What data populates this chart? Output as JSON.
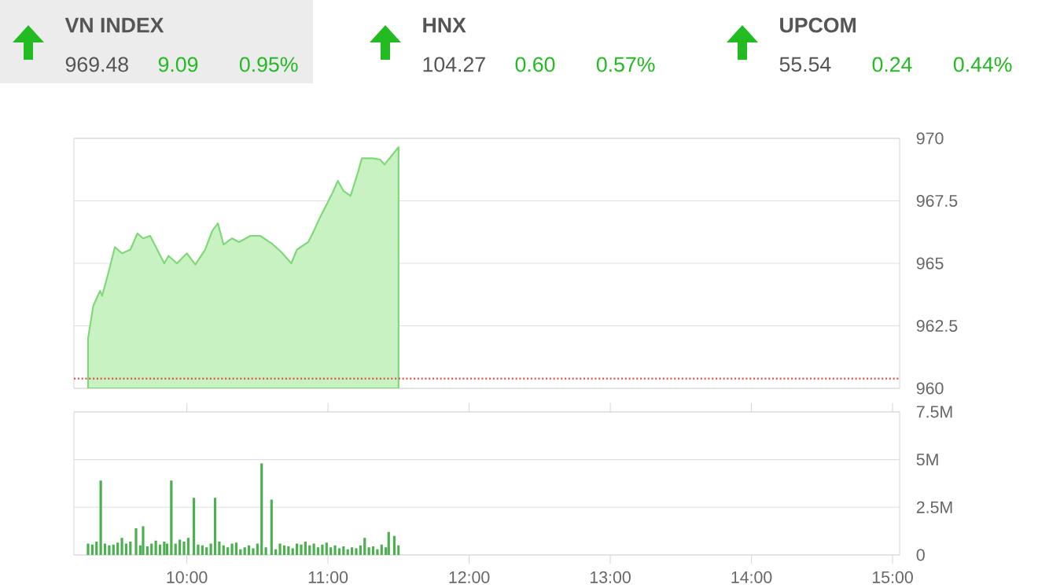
{
  "chart_data": [
    {
      "type": "other",
      "annotations": [
        "VN INDEX",
        "969.48",
        "9.09",
        "0.95%",
        "HNX",
        "104.27",
        "0.60",
        "0.57%",
        "UPCOM",
        "55.54",
        "0.24",
        "0.44%"
      ]
    },
    {
      "type": "area",
      "tick_labels": "y",
      "grid": "y",
      "xlim": [
        9.2,
        15.05
      ],
      "ylim": [
        960,
        970
      ],
      "yticks": [
        960,
        962.5,
        965,
        967.5,
        970
      ],
      "ref_lines": [
        {
          "axis": "y",
          "value": 960.39,
          "color": "#d9534f",
          "line_style": "dotted"
        }
      ],
      "series": [
        {
          "color": "#7fd877",
          "x": [
            9.3,
            9.337,
            9.385,
            9.4,
            9.448,
            9.49,
            9.54,
            9.6,
            9.65,
            9.69,
            9.74,
            9.84,
            9.87,
            9.93,
            10.0,
            10.06,
            10.13,
            10.18,
            10.22,
            10.26,
            10.32,
            10.37,
            10.45,
            10.52,
            10.6,
            10.67,
            10.74,
            10.78,
            10.86,
            10.9,
            10.94,
            10.99,
            11.03,
            11.07,
            11.11,
            11.16,
            11.21,
            11.24,
            11.32,
            11.37,
            11.4,
            11.45,
            11.5
          ],
          "values": [
            962.0,
            963.3,
            963.9,
            963.7,
            964.7,
            965.65,
            965.4,
            965.55,
            966.2,
            966.0,
            966.1,
            965.0,
            965.3,
            965.0,
            965.4,
            964.95,
            965.55,
            966.3,
            966.6,
            965.75,
            966.0,
            965.85,
            966.1,
            966.1,
            965.8,
            965.45,
            965.0,
            965.55,
            965.85,
            966.3,
            966.8,
            967.35,
            967.8,
            968.3,
            967.9,
            967.7,
            968.6,
            969.2,
            969.2,
            969.15,
            968.95,
            969.3,
            969.65
          ]
        }
      ]
    },
    {
      "type": "bar",
      "grid": "y",
      "xlim": [
        9.2,
        15.05
      ],
      "xticks": [
        {
          "value": 10,
          "label": "10:00"
        },
        {
          "value": 11,
          "label": "11:00"
        },
        {
          "value": 12,
          "label": "12:00"
        },
        {
          "value": 13,
          "label": "13:00"
        },
        {
          "value": 14,
          "label": "14:00"
        },
        {
          "value": 15,
          "label": "15:00"
        }
      ],
      "ylim": [
        0,
        7.5
      ],
      "yticks": [
        0,
        {
          "value": 2.5,
          "label": "2.5M"
        },
        {
          "value": 5,
          "label": "5M"
        },
        {
          "value": 7.5,
          "label": "7.5M"
        }
      ],
      "series": [
        {
          "color": "#4caf50",
          "x": [
            9.3,
            9.33,
            9.36,
            9.39,
            9.42,
            9.45,
            9.48,
            9.51,
            9.54,
            9.57,
            9.6,
            9.64,
            9.67,
            9.69,
            9.72,
            9.75,
            9.78,
            9.81,
            9.84,
            9.86,
            9.89,
            9.92,
            9.95,
            9.98,
            10.01,
            10.05,
            10.08,
            10.11,
            10.14,
            10.17,
            10.2,
            10.23,
            10.26,
            10.29,
            10.32,
            10.35,
            10.38,
            10.41,
            10.44,
            10.47,
            10.5,
            10.53,
            10.56,
            10.6,
            10.63,
            10.66,
            10.69,
            10.72,
            10.75,
            10.78,
            10.81,
            10.84,
            10.87,
            10.9,
            10.93,
            10.96,
            10.99,
            11.02,
            11.05,
            11.08,
            11.11,
            11.14,
            11.17,
            11.2,
            11.23,
            11.26,
            11.29,
            11.32,
            11.35,
            11.38,
            11.41,
            11.43,
            11.47,
            11.5
          ],
          "values": [
            0.6,
            0.55,
            0.7,
            3.9,
            0.6,
            0.5,
            0.55,
            0.65,
            0.9,
            0.6,
            0.7,
            1.4,
            0.5,
            1.5,
            0.45,
            0.6,
            0.75,
            0.55,
            0.7,
            0.6,
            3.9,
            0.6,
            0.8,
            0.7,
            0.9,
            3.0,
            0.55,
            0.5,
            0.4,
            0.6,
            3.0,
            0.7,
            0.5,
            0.4,
            0.6,
            0.65,
            0.3,
            0.4,
            0.5,
            0.35,
            0.6,
            4.8,
            0.4,
            2.9,
            0.3,
            0.6,
            0.5,
            0.45,
            0.35,
            0.6,
            0.55,
            0.7,
            0.5,
            0.6,
            0.4,
            0.55,
            0.65,
            0.4,
            0.5,
            0.35,
            0.45,
            0.3,
            0.4,
            0.35,
            0.5,
            0.9,
            0.4,
            0.45,
            0.3,
            0.55,
            0.4,
            1.2,
            1.0,
            0.5
          ]
        }
      ]
    }
  ]
}
